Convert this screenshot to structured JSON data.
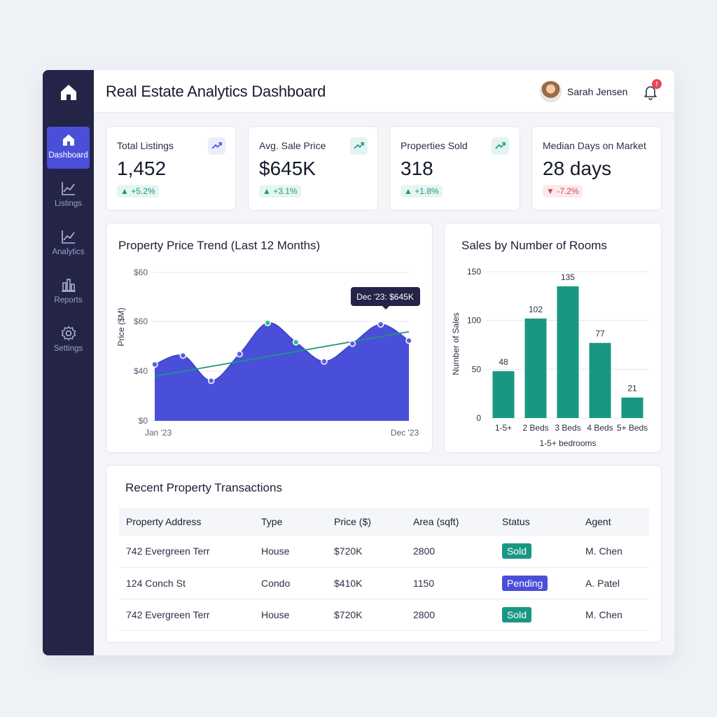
{
  "header": {
    "title": "Real Estate Analytics Dashboard",
    "user_name": "Sarah Jensen",
    "notification_count": "!"
  },
  "sidebar": {
    "items": [
      {
        "label": "Dashboard",
        "icon": "home-icon",
        "active": true
      },
      {
        "label": "Listings",
        "icon": "chart-line-icon",
        "active": false
      },
      {
        "label": "Analytics",
        "icon": "chart-line-icon",
        "active": false
      },
      {
        "label": "Reports",
        "icon": "bar-chart-icon",
        "active": false
      },
      {
        "label": "Settings",
        "icon": "gear-icon",
        "active": false
      }
    ]
  },
  "stats": [
    {
      "label": "Total Listings",
      "value": "1,452",
      "change": "▲ +5.2%",
      "direction": "up"
    },
    {
      "label": "Avg. Sale Price",
      "value": "$645K",
      "change": "▲ +3.1%",
      "direction": "up"
    },
    {
      "label": "Properties Sold",
      "value": "318",
      "change": "▲ +1.8%",
      "direction": "up"
    },
    {
      "label": "Median Days on Market",
      "value": "28 days",
      "change": "▼ -7.2%",
      "direction": "down"
    }
  ],
  "chart_data": [
    {
      "type": "area",
      "title": "Property Price Trend (Last 12 Months)",
      "ylabel": "Price ($M)",
      "x_tick_labels": [
        "Jan '23",
        "Dec '23"
      ],
      "y_tick_labels": [
        "$0",
        "$40",
        "$60",
        "$60"
      ],
      "points": [
        38,
        44,
        27,
        45,
        66,
        53,
        40,
        52,
        65,
        54
      ],
      "trendline": [
        30,
        60
      ],
      "ylim": [
        0,
        100
      ],
      "tooltip": "Dec '23: $645K",
      "colors": {
        "fill": "#4a4fd9",
        "trend": "#1a9783"
      }
    },
    {
      "type": "bar",
      "title": "Sales by Number of Rooms",
      "ylabel": "Number of Sales",
      "xlabel": "1-5+ bedrooms",
      "categories": [
        "1-5+",
        "2 Beds",
        "3 Beds",
        "4 Beds",
        "5+ Beds"
      ],
      "values": [
        48,
        102,
        135,
        77,
        21
      ],
      "y_ticks": [
        0,
        50,
        100,
        150
      ],
      "ylim": [
        0,
        150
      ],
      "colors": {
        "bar": "#1a9783"
      }
    }
  ],
  "transactions": {
    "title": "Recent Property Transactions",
    "columns": [
      "Property Address",
      "Type",
      "Price ($)",
      "Area (sqft)",
      "Status",
      "Agent"
    ],
    "rows": [
      {
        "address": "742 Evergreen Terr",
        "type": "House",
        "price": "$720K",
        "area": "2800",
        "status": "Sold",
        "agent": "M. Chen"
      },
      {
        "address": "124 Conch St",
        "type": "Condo",
        "price": "$410K",
        "area": "1150",
        "status": "Pending",
        "agent": "A. Patel"
      },
      {
        "address": "742 Evergreen Terr",
        "type": "House",
        "price": "$720K",
        "area": "2800",
        "status": "Sold",
        "agent": "M. Chen"
      }
    ]
  }
}
